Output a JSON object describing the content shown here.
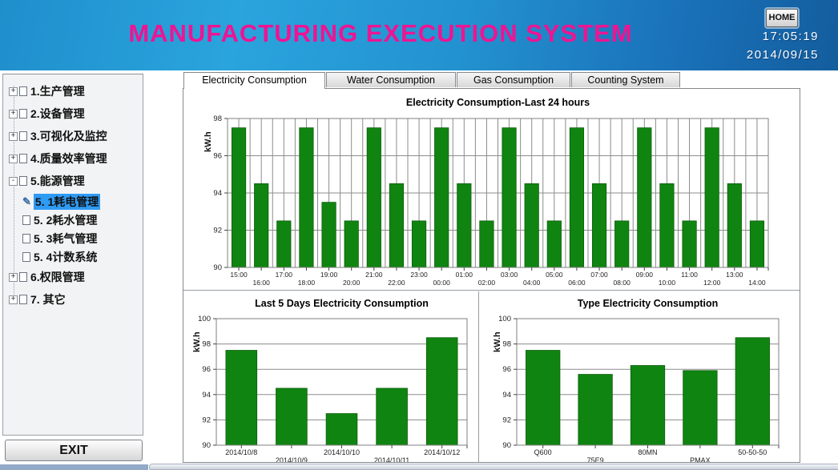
{
  "header": {
    "title": "MANUFACTURING EXECUTION SYSTEM",
    "home_label": "HOME",
    "time": "17:05:19",
    "date": "2014/09/15"
  },
  "icons": {
    "pencil": "✎",
    "expand_collapsed": "+",
    "expand_expanded": "-"
  },
  "sidebar": {
    "exit_label": "EXIT",
    "items": [
      {
        "label": "1.生产管理",
        "level": 1,
        "expander": "+",
        "selected": false
      },
      {
        "label": "2.设备管理",
        "level": 1,
        "expander": "+",
        "selected": false
      },
      {
        "label": "3.可视化及监控",
        "level": 1,
        "expander": "+",
        "selected": false
      },
      {
        "label": "4.质量效率管理",
        "level": 1,
        "expander": "+",
        "selected": false
      },
      {
        "label": "5.能源管理",
        "level": 1,
        "expander": "-",
        "selected": false
      },
      {
        "label": "5. 1耗电管理",
        "level": 2,
        "expander": "",
        "selected": true
      },
      {
        "label": "5. 2耗水管理",
        "level": 2,
        "expander": "",
        "selected": false
      },
      {
        "label": "5. 3耗气管理",
        "level": 2,
        "expander": "",
        "selected": false
      },
      {
        "label": "5. 4计数系统",
        "level": 2,
        "expander": "",
        "selected": false
      },
      {
        "label": "6.权限管理",
        "level": 1,
        "expander": "+",
        "selected": false
      },
      {
        "label": "7. 其它",
        "level": 1,
        "expander": "+",
        "selected": false
      }
    ]
  },
  "tabs": [
    {
      "label": "Electricity Consumption",
      "active": true
    },
    {
      "label": "Water Consumption",
      "active": false
    },
    {
      "label": "Gas Consumption",
      "active": false
    },
    {
      "label": "Counting System",
      "active": false
    }
  ],
  "colors": {
    "bar_green": "#108410",
    "bar_green_edge": "#0a5c0a",
    "grid_gray": "#8c8c8c",
    "selection_blue": "#2e9bf5",
    "title_pink": "#ee1493"
  },
  "chart_data": [
    {
      "type": "bar",
      "title": "Electricity Consumption-Last 24 hours",
      "ylabel": "kW.h",
      "xlabel": "",
      "ylim": [
        90,
        98
      ],
      "yticks": [
        90,
        92,
        94,
        96,
        98
      ],
      "grid": "both",
      "legend": "none",
      "categories": [
        "15:00",
        "16:00",
        "17:00",
        "18:00",
        "19:00",
        "20:00",
        "21:00",
        "22:00",
        "23:00",
        "00:00",
        "01:00",
        "02:00",
        "03:00",
        "04:00",
        "05:00",
        "06:00",
        "07:00",
        "08:00",
        "09:00",
        "10:00",
        "11:00",
        "12:00",
        "13:00",
        "14:00"
      ],
      "values": [
        97.5,
        94.5,
        92.5,
        97.5,
        93.5,
        92.5,
        97.5,
        94.5,
        92.5,
        97.5,
        94.5,
        92.5,
        97.5,
        94.5,
        92.5,
        97.5,
        94.5,
        92.5,
        97.5,
        94.5,
        92.5,
        97.5,
        94.5,
        92.5
      ]
    },
    {
      "type": "bar",
      "title": "Last 5 Days Electricity Consumption",
      "ylabel": "kW.h",
      "xlabel": "",
      "ylim": [
        90,
        100
      ],
      "yticks": [
        90,
        92,
        94,
        96,
        98,
        100
      ],
      "grid": "horizontal",
      "legend": "none",
      "categories": [
        "2014/10/8",
        "2014/10/9",
        "2014/10/10",
        "2014/10/11",
        "2014/10/12"
      ],
      "values": [
        97.5,
        94.5,
        92.5,
        94.5,
        98.5
      ]
    },
    {
      "type": "bar",
      "title": "Type Electricity Consumption",
      "ylabel": "kW.h",
      "xlabel": "",
      "ylim": [
        90,
        100
      ],
      "yticks": [
        90,
        92,
        94,
        96,
        98,
        100
      ],
      "grid": "horizontal",
      "legend": "none",
      "categories": [
        "Q600",
        "75E9",
        "80MN",
        "PMAX",
        "50-50-50"
      ],
      "values": [
        97.5,
        95.6,
        96.3,
        95.9,
        98.5
      ]
    }
  ]
}
